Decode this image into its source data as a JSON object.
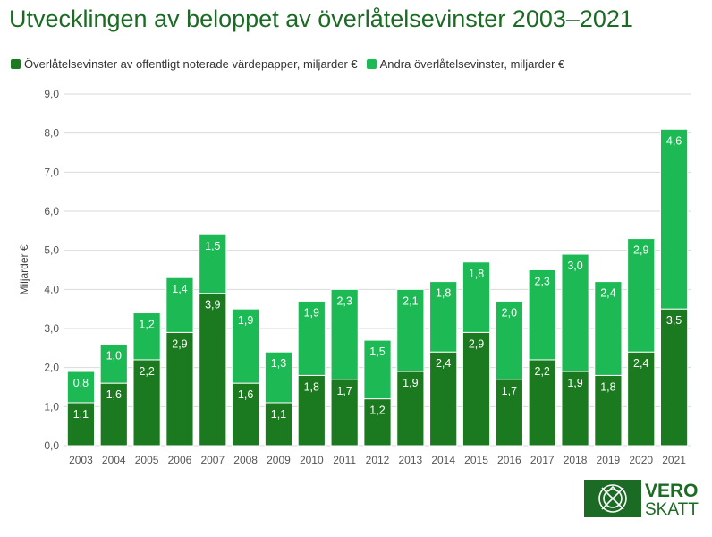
{
  "chart_data": {
    "type": "bar",
    "stacked": true,
    "title": "Utvecklingen av beloppet av överlåtelsevinster 2003–2021",
    "ylabel": "Miljarder €",
    "xlabel": "",
    "ylim": [
      0,
      9
    ],
    "yticks": [
      "0,0",
      "1,0",
      "2,0",
      "3,0",
      "4,0",
      "5,0",
      "6,0",
      "7,0",
      "8,0",
      "9,0"
    ],
    "grid": true,
    "legend_position": "top-left",
    "categories": [
      "2003",
      "2004",
      "2005",
      "2006",
      "2007",
      "2008",
      "2009",
      "2010",
      "2011",
      "2012",
      "2013",
      "2014",
      "2015",
      "2016",
      "2017",
      "2018",
      "2019",
      "2020",
      "2021"
    ],
    "series": [
      {
        "name": "Överlåtelsevinster av offentligt noterade värdepapper, miljarder €",
        "color": "#1b7a1f",
        "values": [
          1.1,
          1.6,
          2.2,
          2.9,
          3.9,
          1.6,
          1.1,
          1.8,
          1.7,
          1.2,
          1.9,
          2.4,
          2.9,
          1.7,
          2.2,
          1.9,
          1.8,
          2.4,
          3.5
        ],
        "labels": [
          "1,1",
          "1,6",
          "2,2",
          "2,9",
          "3,9",
          "1,6",
          "1,1",
          "1,8",
          "1,7",
          "1,2",
          "1,9",
          "2,4",
          "2,9",
          "1,7",
          "2,2",
          "1,9",
          "1,8",
          "2,4",
          "3,5"
        ]
      },
      {
        "name": "Andra överlåtelsevinster, miljarder €",
        "color": "#1db954",
        "values": [
          0.8,
          1.0,
          1.2,
          1.4,
          1.5,
          1.9,
          1.3,
          1.9,
          2.3,
          1.5,
          2.1,
          1.8,
          1.8,
          2.0,
          2.3,
          3.0,
          2.4,
          2.9,
          4.6
        ],
        "labels": [
          "0,8",
          "1,0",
          "1,2",
          "1,4",
          "1,5",
          "1,9",
          "1,3",
          "1,9",
          "2,3",
          "1,5",
          "2,1",
          "1,8",
          "1,8",
          "2,0",
          "2,3",
          "3,0",
          "2,4",
          "2,9",
          "4,6"
        ]
      }
    ]
  },
  "logo": {
    "line1": "VERO",
    "line2": "SKATT",
    "icon": "tax-administration-emblem-icon"
  }
}
